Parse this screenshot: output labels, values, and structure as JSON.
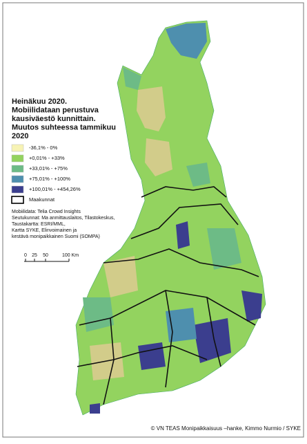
{
  "title": [
    "Heinäkuu 2020.",
    "Mobiilidataan perustuva",
    "kausiväestö kunnittain.",
    "Muutos suhteessa tammikuu",
    "2020"
  ],
  "legend": [
    {
      "label": "-36,1% - 0%",
      "color": "#f7f3b4"
    },
    {
      "label": "+0,01% - +33%",
      "color": "#93d35f"
    },
    {
      "label": "+33,01% - +75%",
      "color": "#6dbb86"
    },
    {
      "label": "+75,01% - +100%",
      "color": "#4e8fae"
    },
    {
      "label": "+100,01% - +454,26%",
      "color": "#3b3e8e"
    },
    {
      "label": "Maakunnat"
    }
  ],
  "sources": [
    "Mobiilidata: Telia Crowd Insights",
    "Seutukunnat: Ma anmittauslaitos, Tilastokeskus,",
    "Taustakartta: ESRI/MML,",
    "Kartta SYKE, Elinvoimainen ja",
    "kestävä monipaikkainen Suomi (SOMPA)"
  ],
  "scale": [
    "0",
    "25",
    "50",
    "100 Km"
  ],
  "credit": "© VN TEAS Monipaikkaisuus –hanke, Kimmo Nurmio / SYKE"
}
